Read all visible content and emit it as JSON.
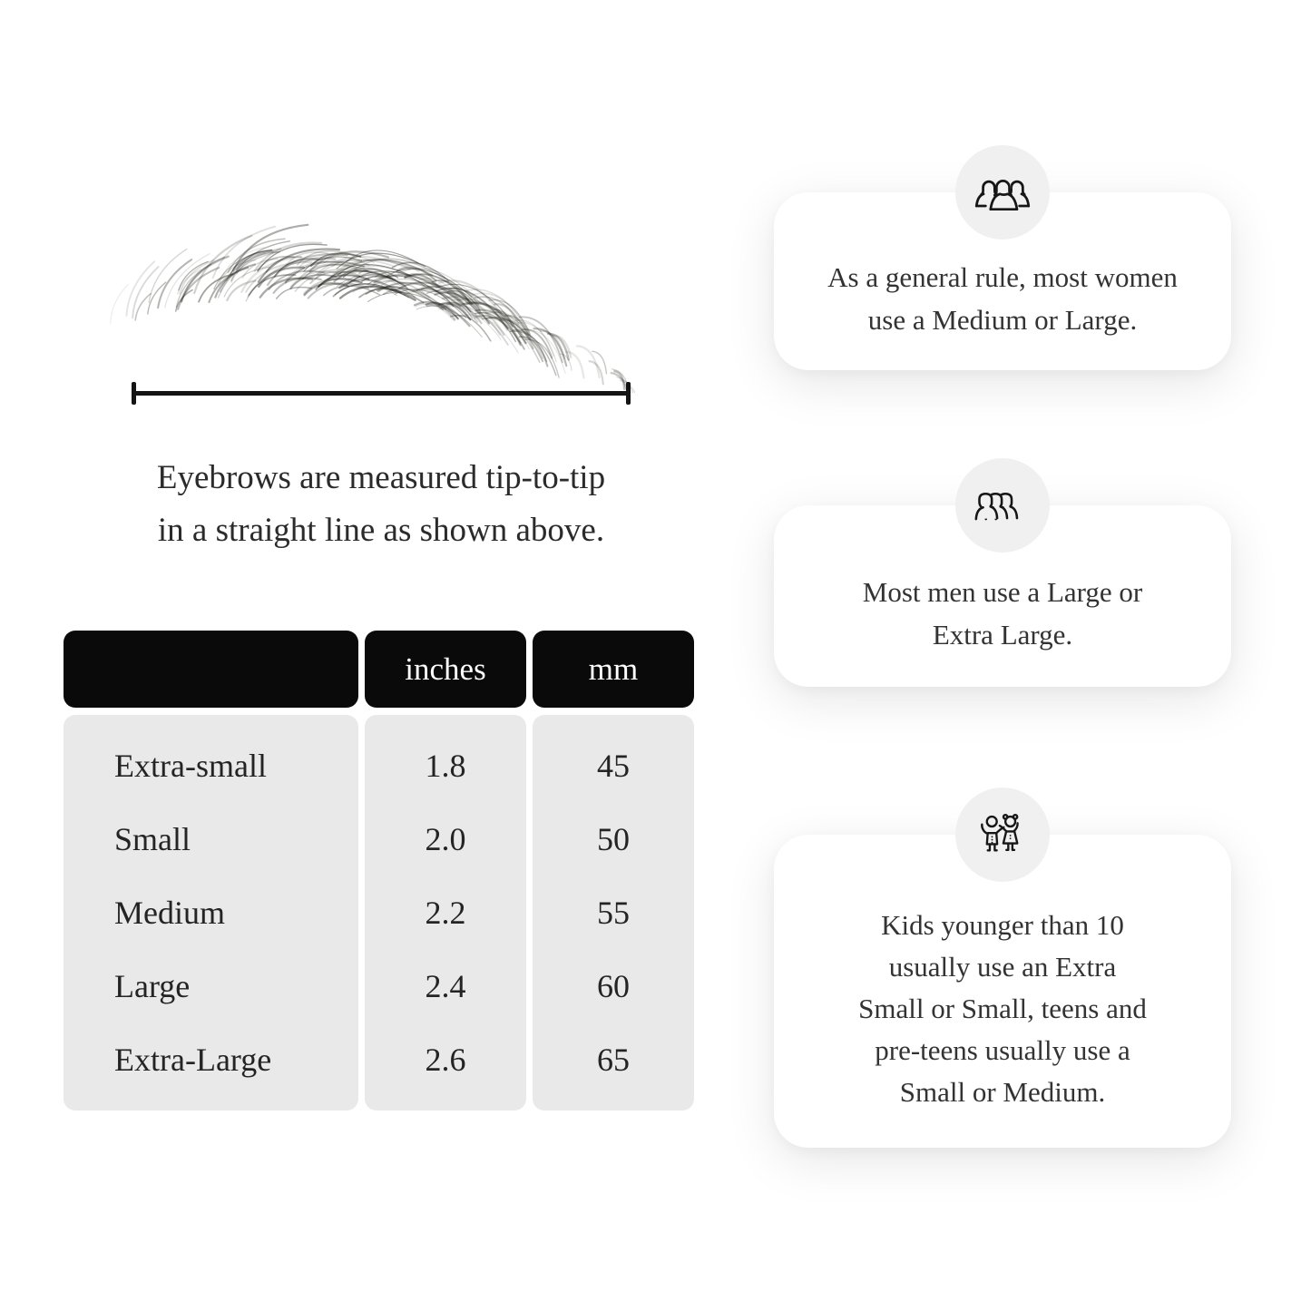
{
  "measure": {
    "caption_lines": [
      "Eyebrows are measured tip-to-tip",
      "in a straight line as shown above."
    ]
  },
  "table": {
    "headers": {
      "label": "",
      "inches": "inches",
      "mm": "mm"
    },
    "rows": [
      {
        "label": "Extra-small",
        "inches": "1.8",
        "mm": "45"
      },
      {
        "label": "Small",
        "inches": "2.0",
        "mm": "50"
      },
      {
        "label": "Medium",
        "inches": "2.2",
        "mm": "55"
      },
      {
        "label": "Large",
        "inches": "2.4",
        "mm": "60"
      },
      {
        "label": "Extra-Large",
        "inches": "2.6",
        "mm": "65"
      }
    ]
  },
  "cards": [
    {
      "icon": "women-group-icon",
      "lines": [
        "As a general rule, most women",
        "use a Medium or Large."
      ]
    },
    {
      "icon": "men-group-icon",
      "lines": [
        "Most men use a Large or",
        "Extra Large."
      ]
    },
    {
      "icon": "kids-icon",
      "lines": [
        "Kids younger than 10",
        "usually use an Extra",
        "Small or Small, teens and",
        "pre-teens usually use a",
        "Small or Medium."
      ]
    }
  ],
  "colors": {
    "background": "#ffffff",
    "table_header_bg": "#0a0a0a",
    "table_header_text": "#ffffff",
    "table_body_bg": "#e9e9e9",
    "card_bg": "#ffffff",
    "icon_badge_bg": "#f0f0f0",
    "ink": "#161616",
    "text": "#2e2e2e"
  }
}
